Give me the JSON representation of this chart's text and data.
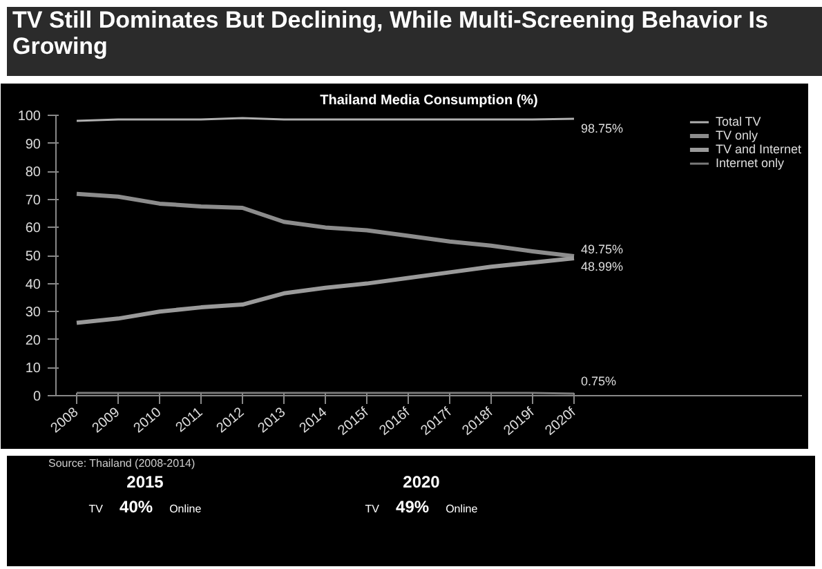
{
  "chart_data": {
    "type": "line",
    "title": "TV Still Dominates But Declining, While Multi-Screening Behavior Is Growing",
    "subtitle": "Thailand Media Consumption (%)",
    "categories": [
      "2008",
      "2009",
      "2010",
      "2011",
      "2012",
      "2013",
      "2014",
      "2015f",
      "2016f",
      "2017f",
      "2018f",
      "2019f",
      "2020f"
    ],
    "series": [
      {
        "name": "Total TV",
        "color": "#b0b0b0",
        "values": [
          98,
          98.5,
          98.5,
          98.5,
          99,
          98.5,
          98.5,
          98.5,
          98.5,
          98.5,
          98.5,
          98.5,
          98.75
        ],
        "value_labels": [
          null,
          null,
          null,
          null,
          null,
          null,
          null,
          null,
          null,
          null,
          null,
          null,
          "98.75%"
        ]
      },
      {
        "name": "TV only",
        "color": "#8c8c8c",
        "values": [
          72,
          71,
          68.5,
          67.5,
          67,
          62,
          60,
          59,
          57,
          55,
          53.5,
          51.5,
          49.75
        ],
        "value_labels": [
          null,
          null,
          null,
          null,
          null,
          null,
          null,
          null,
          null,
          null,
          null,
          null,
          "49.75%"
        ]
      },
      {
        "name": "TV and Internet",
        "color": "#9a9a9a",
        "values": [
          26,
          27.5,
          30,
          31.5,
          32.5,
          36.5,
          38.5,
          40,
          42,
          44,
          46,
          47.5,
          48.99
        ],
        "value_labels": [
          null,
          null,
          null,
          null,
          null,
          null,
          null,
          null,
          null,
          null,
          null,
          null,
          "48.99%"
        ]
      },
      {
        "name": "Internet only",
        "color": "#7a7a7a",
        "values": [
          1,
          1,
          1,
          1,
          1,
          1,
          1,
          1,
          1,
          1,
          1,
          1,
          0.75
        ],
        "value_labels": [
          null,
          null,
          null,
          null,
          null,
          null,
          null,
          null,
          null,
          null,
          null,
          null,
          "0.75%"
        ]
      }
    ],
    "ylim": [
      0,
      100
    ],
    "yticks": [
      0,
      10,
      20,
      30,
      40,
      50,
      60,
      70,
      80,
      90,
      100
    ],
    "grid": false,
    "legend": "right",
    "annotations": [
      "Source: Thailand (2008-2014)",
      "2015",
      "TV",
      "Online",
      "40%",
      "2020",
      "TV",
      "Online",
      "49%"
    ]
  }
}
